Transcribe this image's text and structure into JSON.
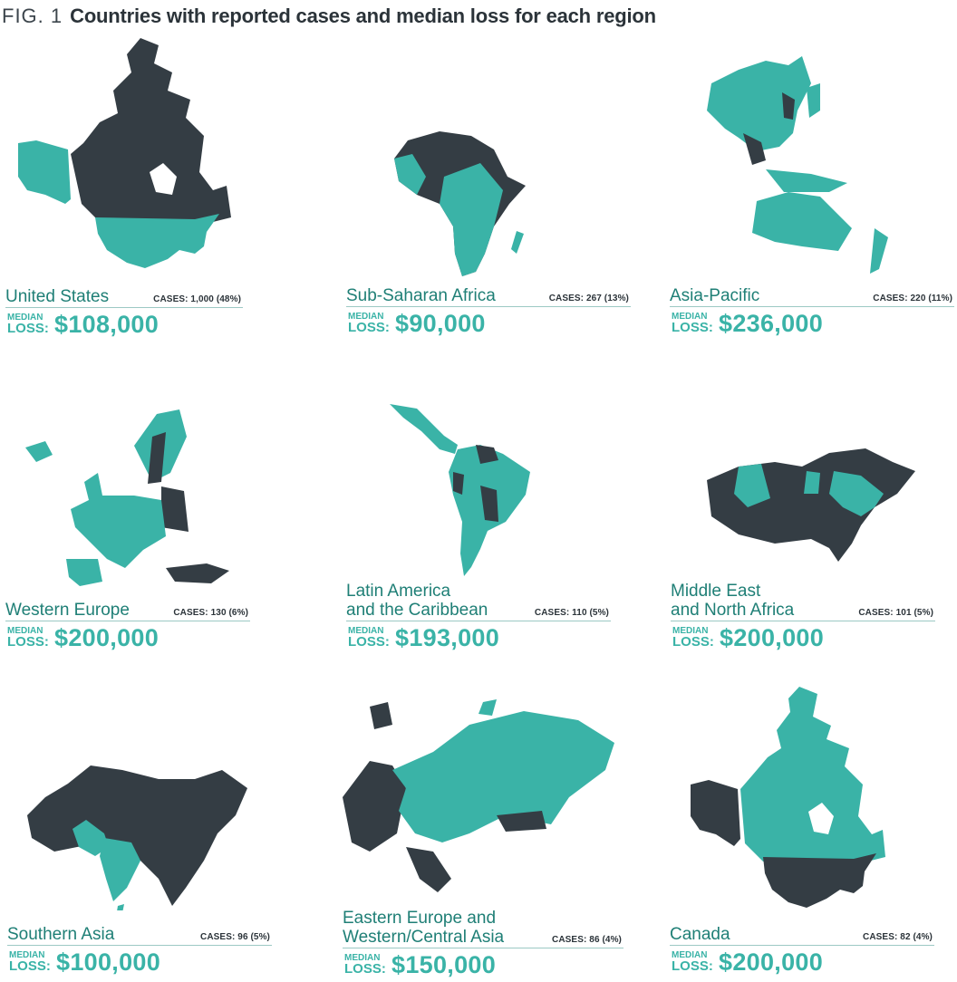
{
  "figure": {
    "label": "FIG. 1",
    "title": "Countries with reported cases and median loss for each region"
  },
  "colors": {
    "highlight": "#3ab3a7",
    "other": "#343d44",
    "title_text": "#1f7f76"
  },
  "median_loss_label": {
    "line1": "MEDIAN",
    "line2": "LOSS:"
  },
  "regions": [
    {
      "name_lines": [
        "United States"
      ],
      "cases": "CASES: 1,000 (48%)",
      "median_loss": "$108,000",
      "map_icon": "north-america-map"
    },
    {
      "name_lines": [
        "Sub-Saharan Africa"
      ],
      "cases": "CASES: 267 (13%)",
      "median_loss": "$90,000",
      "map_icon": "africa-map"
    },
    {
      "name_lines": [
        "Asia-Pacific"
      ],
      "cases": "CASES: 220 (11%)",
      "median_loss": "$236,000",
      "map_icon": "asia-pacific-map"
    },
    {
      "name_lines": [
        "Western Europe"
      ],
      "cases": "CASES: 130 (6%)",
      "median_loss": "$200,000",
      "map_icon": "europe-map"
    },
    {
      "name_lines": [
        "Latin America",
        "and the Caribbean"
      ],
      "cases": "CASES: 110 (5%)",
      "median_loss": "$193,000",
      "map_icon": "latin-america-map"
    },
    {
      "name_lines": [
        "Middle East",
        "and North Africa"
      ],
      "cases": "CASES: 101 (5%)",
      "median_loss": "$200,000",
      "map_icon": "mena-map"
    },
    {
      "name_lines": [
        "Southern Asia"
      ],
      "cases": "CASES: 96 (5%)",
      "median_loss": "$100,000",
      "map_icon": "asia-map"
    },
    {
      "name_lines": [
        "Eastern Europe and",
        "Western/Central Asia"
      ],
      "cases": "CASES: 86 (4%)",
      "median_loss": "$150,000",
      "map_icon": "eurasia-map"
    },
    {
      "name_lines": [
        "Canada"
      ],
      "cases": "CASES: 82 (4%)",
      "median_loss": "$200,000",
      "map_icon": "north-america-map"
    }
  ]
}
